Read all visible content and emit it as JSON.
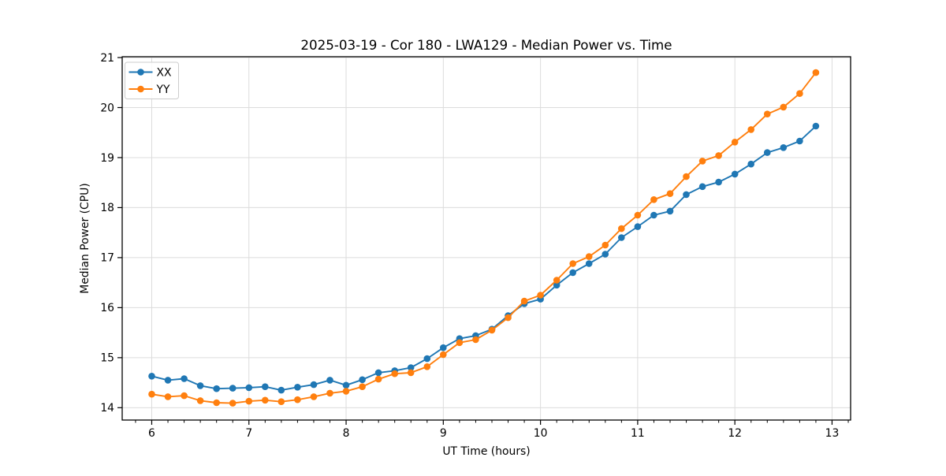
{
  "chart_data": {
    "type": "line",
    "title": "2025-03-19 - Cor 180 - LWA129 - Median Power vs. Time",
    "xlabel": "UT Time (hours)",
    "ylabel": "Median Power (CPU)",
    "xlim": [
      5.696,
      13.191
    ],
    "ylim": [
      13.753,
      21.016
    ],
    "x_ticks": [
      6,
      7,
      8,
      9,
      10,
      11,
      12,
      13
    ],
    "y_ticks": [
      14,
      15,
      16,
      17,
      18,
      19,
      20,
      21
    ],
    "x_minor_step": 0.16667,
    "grid": true,
    "grid_color": "#dcdcdc",
    "legend_position": "upper-left",
    "x": [
      6.0,
      6.1667,
      6.3333,
      6.5,
      6.6667,
      6.8333,
      7.0,
      7.1667,
      7.3333,
      7.5,
      7.6667,
      7.8333,
      8.0,
      8.1667,
      8.3333,
      8.5,
      8.6667,
      8.8333,
      9.0,
      9.1667,
      9.3333,
      9.5,
      9.6667,
      9.8333,
      10.0,
      10.1667,
      10.3333,
      10.5,
      10.6667,
      10.8333,
      11.0,
      11.1667,
      11.3333,
      11.5,
      11.6667,
      11.8333,
      12.0,
      12.1667,
      12.3333,
      12.5,
      12.6667,
      12.8333
    ],
    "series": [
      {
        "name": "XX",
        "color": "#1f77b4",
        "values": [
          14.63,
          14.55,
          14.58,
          14.44,
          14.38,
          14.39,
          14.4,
          14.42,
          14.35,
          14.41,
          14.46,
          14.55,
          14.45,
          14.56,
          14.7,
          14.74,
          14.8,
          14.98,
          15.2,
          15.38,
          15.44,
          15.57,
          15.84,
          16.08,
          16.17,
          16.45,
          16.7,
          16.88,
          17.07,
          17.4,
          17.62,
          17.85,
          17.93,
          18.26,
          18.42,
          18.51,
          18.67,
          18.87,
          19.1,
          19.2,
          19.33,
          19.63
        ]
      },
      {
        "name": "YY",
        "color": "#ff7f0e",
        "values": [
          14.27,
          14.22,
          14.24,
          14.14,
          14.1,
          14.09,
          14.13,
          14.15,
          14.12,
          14.16,
          14.22,
          14.29,
          14.33,
          14.42,
          14.57,
          14.68,
          14.7,
          14.82,
          15.06,
          15.3,
          15.36,
          15.55,
          15.8,
          16.13,
          16.25,
          16.55,
          16.88,
          17.02,
          17.25,
          17.58,
          17.85,
          18.16,
          18.28,
          18.62,
          18.93,
          19.04,
          19.31,
          19.56,
          19.87,
          20.01,
          20.28,
          20.7
        ]
      }
    ]
  }
}
